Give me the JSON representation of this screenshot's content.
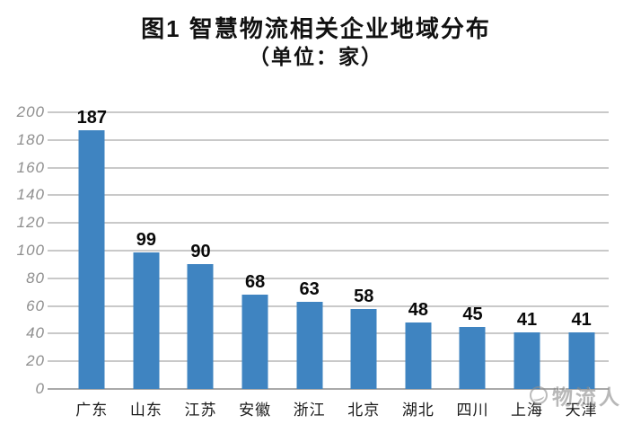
{
  "title": {
    "line1": "图1 智慧物流相关企业地域分布",
    "line2": "（单位：家）"
  },
  "chart_data": {
    "type": "bar",
    "title": "图1 智慧物流相关企业地域分布",
    "subtitle": "（单位：家）",
    "categories": [
      "广东",
      "山东",
      "江苏",
      "安徽",
      "浙江",
      "北京",
      "湖北",
      "四川",
      "上海",
      "天津"
    ],
    "values": [
      187,
      99,
      90,
      68,
      63,
      58,
      48,
      45,
      41,
      41
    ],
    "xlabel": "",
    "ylabel": "",
    "ylim": [
      0,
      200
    ],
    "yticks": [
      0,
      20,
      40,
      60,
      80,
      100,
      120,
      140,
      160,
      180,
      200
    ],
    "grid": true,
    "legend": "none",
    "colors": {
      "bar": "#3f84c1",
      "gridline": "#c9c9c9",
      "baseline": "#a9a9a9",
      "tick_label": "#8e8e8e",
      "value_label": "#0a0a0a",
      "category_label": "#1a1a1a"
    }
  },
  "watermark": {
    "icon": "globe-logo-icon",
    "text": "物流人"
  }
}
